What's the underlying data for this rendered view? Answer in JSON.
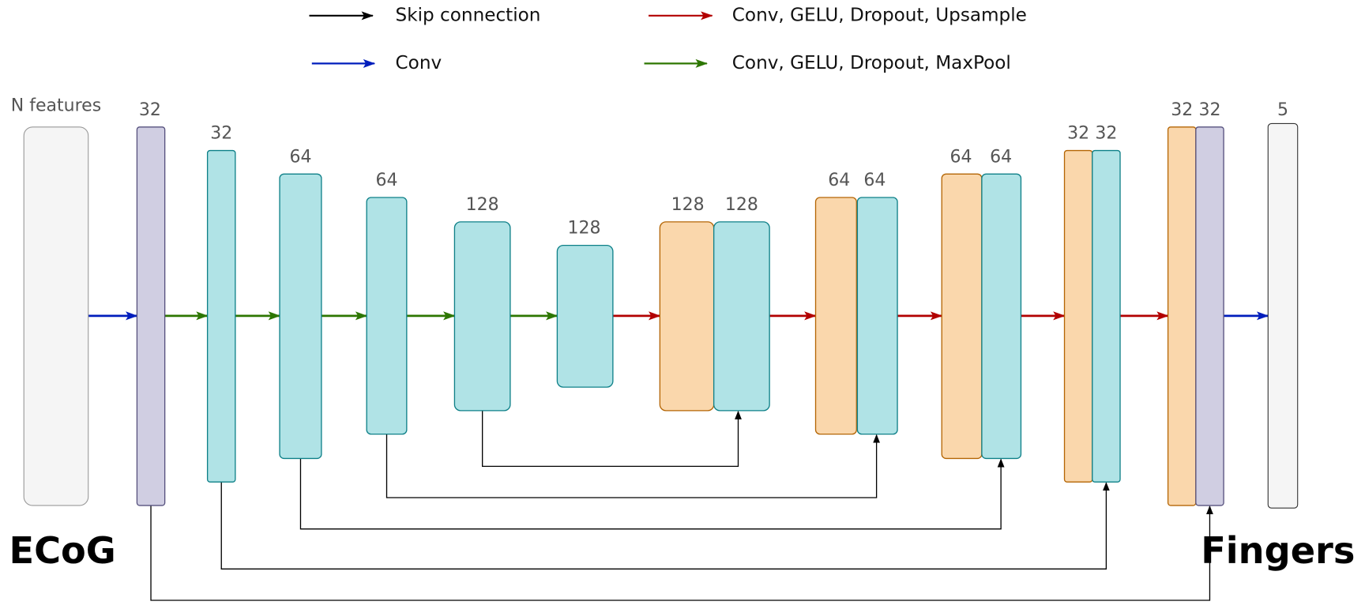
{
  "legend": [
    {
      "label": "Skip connection"
    },
    {
      "label": "Conv, GELU, Dropout, Upsample"
    },
    {
      "label": "Conv"
    },
    {
      "label": "Conv, GELU, Dropout, MaxPool"
    }
  ],
  "input": {
    "label": "N features",
    "caption": "ECoG"
  },
  "output": {
    "label": "5",
    "caption": "Fingers"
  },
  "block_labels": [
    "32",
    "32",
    "64",
    "64",
    "128",
    "128",
    "128",
    "128",
    "64",
    "64",
    "64",
    "64",
    "32",
    "32",
    "32",
    "32"
  ]
}
